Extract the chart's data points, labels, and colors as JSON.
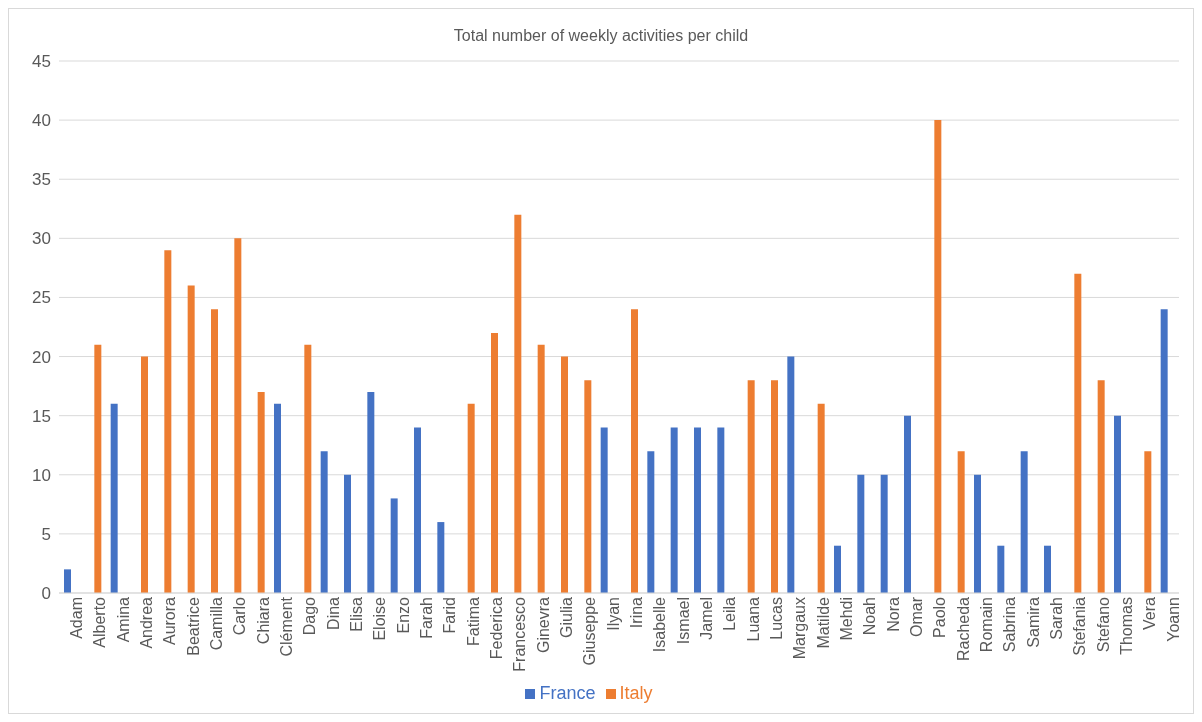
{
  "chart_data": {
    "type": "bar",
    "title": "Total number of weekly activities per child",
    "categories": [
      "Adam",
      "Alberto",
      "Amina",
      "Andrea",
      "Aurora",
      "Beatrice",
      "Camilla",
      "Carlo",
      "Chiara",
      "Clément",
      "Dago",
      "Dina",
      "Elisa",
      "Eloise",
      "Enzo",
      "Farah",
      "Farid",
      "Fatima",
      "Federica",
      "Francesco",
      "Ginevra",
      "Giulia",
      "Giuseppe",
      "Ilyan",
      "Irina",
      "Isabelle",
      "Ismael",
      "Jamel",
      "Leila",
      "Luana",
      "Lucas",
      "Margaux",
      "Matilde",
      "Mehdi",
      "Noah",
      "Nora",
      "Omar",
      "Paolo",
      "Racheda",
      "Romain",
      "Sabrina",
      "Samira",
      "Sarah",
      "Stefania",
      "Stefano",
      "Thomas",
      "Vera",
      "Yoann"
    ],
    "series": [
      {
        "name": "France",
        "color": "#4472c4",
        "values": [
          2,
          null,
          16,
          null,
          null,
          null,
          null,
          null,
          null,
          16,
          null,
          12,
          10,
          17,
          8,
          14,
          6,
          null,
          null,
          null,
          null,
          null,
          null,
          14,
          null,
          12,
          14,
          14,
          14,
          null,
          null,
          20,
          null,
          4,
          10,
          10,
          15,
          null,
          null,
          10,
          4,
          12,
          4,
          null,
          null,
          15,
          null,
          24
        ]
      },
      {
        "name": "Italy",
        "color": "#ed7d31",
        "values": [
          null,
          21,
          null,
          20,
          29,
          26,
          24,
          30,
          17,
          null,
          21,
          null,
          null,
          null,
          null,
          null,
          null,
          16,
          22,
          32,
          21,
          20,
          18,
          null,
          24,
          null,
          null,
          null,
          null,
          18,
          18,
          null,
          16,
          null,
          null,
          null,
          null,
          40,
          12,
          null,
          null,
          null,
          null,
          27,
          18,
          null,
          12,
          null
        ]
      }
    ],
    "ylim": [
      0,
      45
    ],
    "yticks": [
      0,
      5,
      10,
      15,
      20,
      25,
      30,
      35,
      40,
      45
    ],
    "grid": "y",
    "legend": "bottom"
  }
}
